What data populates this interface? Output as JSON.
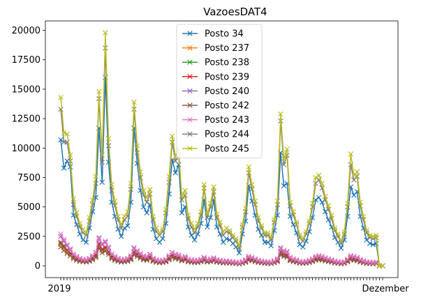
{
  "chart_data": {
    "type": "line",
    "title": "VazoesDAT4",
    "xlabel": "",
    "ylabel": "",
    "ylim": [
      -1000,
      20800
    ],
    "yticks": [
      0,
      2500,
      5000,
      7500,
      10000,
      12500,
      15000,
      17500,
      20000
    ],
    "ytick_labels": [
      "0",
      "2500",
      "5000",
      "7500",
      "10000",
      "12500",
      "15000",
      "17500",
      "20000"
    ],
    "marker": "x",
    "grid": false,
    "legend_position": "upper-center",
    "x_tick_label_samples": [
      "2019",
      "Dezember"
    ],
    "series": [
      {
        "name": "Posto 34",
        "color": "#1f77b4",
        "values": [
          10700,
          8300,
          8900,
          8400,
          4300,
          3500,
          2700,
          2200,
          2000,
          3200,
          4600,
          5800,
          11700,
          7100,
          16000,
          8800,
          5400,
          4200,
          3100,
          2500,
          3200,
          3400,
          5400,
          11700,
          8700,
          6400,
          5000,
          4500,
          5200,
          3100,
          2300,
          2000,
          2300,
          3600,
          6100,
          9000,
          7900,
          8600,
          4500,
          5000,
          3300,
          2600,
          2200,
          2700,
          3600,
          5600,
          3300,
          4100,
          5600,
          3300,
          2700,
          2000,
          2300,
          2200,
          1900,
          1600,
          1100,
          2700,
          3800,
          6800,
          5500,
          4300,
          3100,
          2600,
          2000,
          2000,
          1700,
          3000,
          4300,
          9600,
          6800,
          7000,
          4200,
          3500,
          2800,
          1800,
          1600,
          2100,
          2900,
          4100,
          5600,
          5800,
          5400,
          4600,
          3900,
          3300,
          2400,
          2000,
          1500,
          2200,
          4200,
          6700,
          6000,
          6300,
          4200,
          3200,
          2200,
          1900,
          1800,
          1900,
          0,
          0
        ]
      },
      {
        "name": "Posto 237",
        "color": "#ff7f0e",
        "values": [
          1800,
          1500,
          1200,
          1000,
          700,
          550,
          450,
          400,
          380,
          450,
          600,
          800,
          1700,
          1300,
          1400,
          1100,
          700,
          550,
          450,
          380,
          400,
          450,
          600,
          1100,
          900,
          750,
          600,
          550,
          700,
          450,
          350,
          300,
          330,
          400,
          600,
          800,
          700,
          650,
          500,
          550,
          400,
          350,
          320,
          330,
          400,
          500,
          380,
          420,
          480,
          380,
          330,
          280,
          300,
          270,
          240,
          220,
          180,
          250,
          350,
          550,
          500,
          420,
          330,
          290,
          250,
          240,
          220,
          300,
          420,
          1100,
          900,
          850,
          500,
          420,
          350,
          260,
          240,
          270,
          330,
          420,
          550,
          600,
          550,
          480,
          420,
          360,
          280,
          240,
          200,
          240,
          400,
          600,
          550,
          500,
          380,
          300,
          230,
          210,
          200,
          210,
          0,
          0
        ]
      },
      {
        "name": "Posto 238",
        "color": "#2ca02c",
        "values": [
          1900,
          1600,
          1300,
          1050,
          750,
          580,
          470,
          420,
          400,
          470,
          630,
          850,
          1800,
          1350,
          1500,
          1150,
          740,
          580,
          470,
          400,
          420,
          470,
          630,
          1150,
          950,
          780,
          630,
          580,
          730,
          470,
          370,
          320,
          350,
          420,
          630,
          850,
          740,
          680,
          520,
          580,
          420,
          370,
          340,
          350,
          420,
          520,
          400,
          440,
          500,
          400,
          350,
          300,
          320,
          290,
          260,
          240,
          200,
          270,
          370,
          580,
          520,
          440,
          350,
          300,
          260,
          250,
          230,
          320,
          440,
          1150,
          950,
          900,
          520,
          440,
          370,
          280,
          260,
          290,
          350,
          440,
          580,
          630,
          580,
          500,
          440,
          380,
          300,
          260,
          220,
          260,
          420,
          630,
          580,
          520,
          400,
          320,
          250,
          230,
          220,
          230,
          0,
          0
        ]
      },
      {
        "name": "Posto 239",
        "color": "#d62728",
        "values": [
          2000,
          1700,
          1350,
          1100,
          800,
          620,
          500,
          440,
          420,
          500,
          680,
          900,
          1900,
          1400,
          1600,
          1200,
          780,
          620,
          500,
          420,
          440,
          500,
          680,
          1200,
          1000,
          820,
          680,
          620,
          780,
          500,
          390,
          340,
          370,
          440,
          680,
          900,
          780,
          720,
          560,
          620,
          440,
          390,
          360,
          370,
          440,
          560,
          420,
          460,
          530,
          420,
          370,
          320,
          340,
          310,
          280,
          260,
          210,
          290,
          390,
          620,
          560,
          460,
          370,
          320,
          280,
          270,
          250,
          340,
          460,
          1200,
          1000,
          950,
          560,
          460,
          390,
          300,
          280,
          310,
          370,
          460,
          620,
          680,
          620,
          530,
          460,
          400,
          320,
          280,
          230,
          280,
          440,
          680,
          620,
          560,
          420,
          340,
          270,
          250,
          230,
          250,
          0,
          0
        ]
      },
      {
        "name": "Posto 240",
        "color": "#9467bd",
        "values": [
          2500,
          2100,
          1700,
          1350,
          950,
          750,
          600,
          530,
          500,
          600,
          800,
          1100,
          2300,
          1800,
          2000,
          1500,
          950,
          750,
          600,
          500,
          530,
          600,
          800,
          1450,
          1200,
          1000,
          800,
          750,
          950,
          600,
          480,
          420,
          450,
          530,
          800,
          1100,
          950,
          880,
          680,
          750,
          530,
          480,
          440,
          450,
          530,
          680,
          500,
          560,
          640,
          500,
          450,
          380,
          410,
          370,
          330,
          300,
          250,
          350,
          480,
          750,
          680,
          560,
          450,
          390,
          340,
          330,
          300,
          410,
          560,
          1450,
          1200,
          1150,
          680,
          560,
          480,
          360,
          330,
          370,
          450,
          560,
          750,
          820,
          750,
          640,
          560,
          490,
          390,
          340,
          280,
          340,
          530,
          820,
          750,
          680,
          510,
          410,
          330,
          300,
          280,
          300,
          0,
          0
        ]
      },
      {
        "name": "Posto 242",
        "color": "#8c564b",
        "values": [
          1600,
          1300,
          1050,
          850,
          600,
          470,
          380,
          340,
          320,
          380,
          510,
          700,
          1500,
          1100,
          1250,
          950,
          600,
          470,
          380,
          320,
          340,
          380,
          510,
          950,
          780,
          640,
          510,
          470,
          600,
          380,
          300,
          260,
          280,
          340,
          510,
          700,
          600,
          560,
          430,
          470,
          340,
          300,
          280,
          280,
          340,
          430,
          320,
          350,
          410,
          320,
          280,
          240,
          260,
          230,
          210,
          190,
          160,
          220,
          300,
          470,
          430,
          350,
          280,
          250,
          210,
          200,
          190,
          260,
          350,
          950,
          780,
          730,
          430,
          350,
          300,
          230,
          210,
          230,
          280,
          350,
          470,
          510,
          470,
          410,
          350,
          310,
          240,
          210,
          170,
          210,
          340,
          510,
          470,
          430,
          320,
          260,
          200,
          190,
          170,
          190,
          0,
          0
        ]
      },
      {
        "name": "Posto 243",
        "color": "#e377c2",
        "values": [
          2700,
          2250,
          1800,
          1450,
          1000,
          800,
          640,
          560,
          530,
          640,
          850,
          1150,
          2400,
          1900,
          2100,
          1600,
          1000,
          800,
          640,
          530,
          560,
          640,
          850,
          1550,
          1300,
          1050,
          850,
          800,
          1000,
          640,
          510,
          450,
          480,
          560,
          850,
          1150,
          1000,
          930,
          720,
          800,
          560,
          510,
          470,
          480,
          560,
          720,
          530,
          590,
          680,
          530,
          480,
          400,
          430,
          390,
          350,
          320,
          270,
          370,
          510,
          800,
          720,
          590,
          480,
          410,
          360,
          350,
          320,
          430,
          590,
          1550,
          1300,
          1220,
          720,
          590,
          510,
          380,
          350,
          390,
          480,
          590,
          800,
          870,
          800,
          680,
          590,
          520,
          410,
          360,
          300,
          360,
          560,
          870,
          800,
          720,
          540,
          430,
          350,
          320,
          300,
          320,
          0,
          0
        ]
      },
      {
        "name": "Posto 244",
        "color": "#7f7f7f",
        "values": [
          13300,
          10500,
          10500,
          8900,
          5200,
          4200,
          3300,
          2800,
          2600,
          3800,
          5200,
          7000,
          14200,
          8800,
          18500,
          10200,
          6400,
          5100,
          3900,
          3200,
          3900,
          4200,
          6500,
          13300,
          9600,
          7500,
          6000,
          5400,
          6100,
          3900,
          2900,
          2600,
          2900,
          4500,
          7100,
          10500,
          8900,
          9400,
          5600,
          6000,
          4000,
          3300,
          2800,
          3300,
          4300,
          6600,
          4100,
          5000,
          6300,
          4100,
          3400,
          2600,
          2900,
          2800,
          2400,
          2100,
          1500,
          3300,
          4600,
          7900,
          6500,
          5200,
          3800,
          3200,
          2600,
          2600,
          2200,
          3700,
          5200,
          12300,
          8600,
          9400,
          5100,
          4300,
          3500,
          2400,
          2100,
          2700,
          3600,
          5000,
          7000,
          7300,
          6600,
          5600,
          4800,
          4000,
          3000,
          2500,
          1900,
          2700,
          5000,
          8600,
          7300,
          7600,
          5100,
          3900,
          2800,
          2400,
          2300,
          2400,
          0,
          0
        ]
      },
      {
        "name": "Posto 245",
        "color": "#bcbd22",
        "values": [
          14300,
          11300,
          11200,
          9400,
          5700,
          4500,
          3600,
          3100,
          2800,
          4100,
          5600,
          7600,
          14800,
          9400,
          19800,
          10800,
          6900,
          5500,
          4200,
          3500,
          4200,
          4600,
          7000,
          13900,
          10200,
          8000,
          6400,
          5800,
          6500,
          4200,
          3200,
          2800,
          3100,
          4800,
          7600,
          11000,
          9300,
          9900,
          5900,
          6400,
          4300,
          3600,
          3100,
          3600,
          4600,
          6900,
          4400,
          5300,
          6700,
          4400,
          3700,
          2900,
          3200,
          3000,
          2600,
          2300,
          1700,
          3500,
          4900,
          8400,
          6900,
          5500,
          4100,
          3400,
          2800,
          2800,
          2400,
          3900,
          5500,
          12900,
          9100,
          9900,
          5400,
          4600,
          3700,
          2600,
          2300,
          2900,
          3800,
          5300,
          7500,
          7700,
          7000,
          5900,
          5100,
          4300,
          3200,
          2700,
          2100,
          2900,
          5300,
          9500,
          7700,
          8000,
          5400,
          4200,
          3000,
          2600,
          2500,
          2600,
          0,
          0
        ]
      }
    ]
  }
}
